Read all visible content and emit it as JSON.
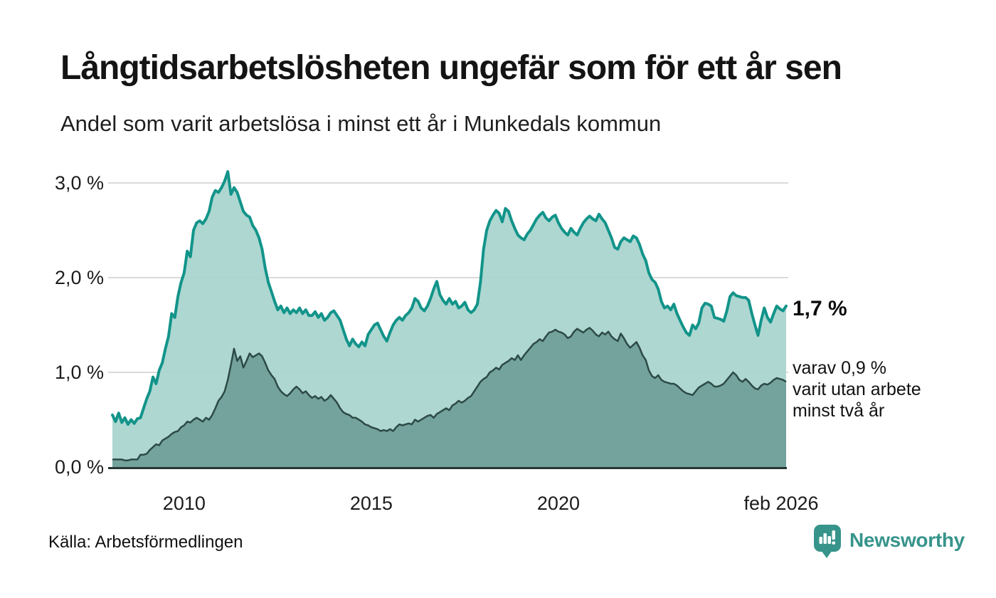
{
  "header": {
    "title": "Långtidsarbetslösheten ungefär som för ett år sen",
    "subtitle": "Andel som varit arbetslösa i minst ett år i Munkedals kommun"
  },
  "annotations": {
    "latest_total": "1,7 %",
    "secondary_line1": "varav 0,9 %",
    "secondary_line2": "varit utan arbete",
    "secondary_line3": "minst två år"
  },
  "footer": {
    "source": "Källa: Arbetsförmedlingen",
    "brand": "Newsworthy"
  },
  "colors": {
    "total_line": "#12948a",
    "total_fill": "#a8d4cd",
    "two_year_line": "#2d4a47",
    "two_year_fill": "#73a39c",
    "grid": "#dadada",
    "axis": "#273736",
    "brand_teal": "#37948b",
    "text": "#141414"
  },
  "chart_data": {
    "type": "area",
    "title": "Långtidsarbetslösheten ungefär som för ett år sen",
    "subtitle": "Andel som varit arbetslösa i minst ett år i Munkedals kommun",
    "unit": "%",
    "frequency": "monthly",
    "start": "2008-02",
    "end": "2026-02",
    "ylim": [
      0,
      3.3
    ],
    "grid": true,
    "legend_position": "right-annotations",
    "y_ticks": [
      {
        "label": "0,0 %",
        "value": 0
      },
      {
        "label": "1,0 %",
        "value": 1
      },
      {
        "label": "2,0 %",
        "value": 2
      },
      {
        "label": "3,0 %",
        "value": 3
      }
    ],
    "x_ticks": [
      {
        "label": "2010",
        "month_index": 23
      },
      {
        "label": "2015",
        "month_index": 83
      },
      {
        "label": "2020",
        "month_index": 143
      },
      {
        "label": "feb 2026",
        "month_index": 216
      }
    ],
    "series": [
      {
        "name": "Andel arbetslösa minst ett år",
        "latest": 1.7,
        "line_color": "#12948a",
        "fill_color": "#a8d4cd",
        "values": [
          0.55,
          0.48,
          0.57,
          0.47,
          0.52,
          0.45,
          0.5,
          0.46,
          0.51,
          0.52,
          0.62,
          0.72,
          0.8,
          0.95,
          0.88,
          1.02,
          1.1,
          1.25,
          1.38,
          1.62,
          1.58,
          1.8,
          1.95,
          2.05,
          2.28,
          2.22,
          2.5,
          2.58,
          2.6,
          2.57,
          2.62,
          2.7,
          2.85,
          2.92,
          2.9,
          2.95,
          3.02,
          3.12,
          2.88,
          2.95,
          2.9,
          2.8,
          2.7,
          2.66,
          2.64,
          2.55,
          2.5,
          2.42,
          2.3,
          2.1,
          1.95,
          1.85,
          1.75,
          1.66,
          1.7,
          1.63,
          1.68,
          1.62,
          1.66,
          1.63,
          1.68,
          1.62,
          1.66,
          1.6,
          1.6,
          1.64,
          1.58,
          1.62,
          1.55,
          1.58,
          1.63,
          1.65,
          1.6,
          1.55,
          1.45,
          1.35,
          1.28,
          1.35,
          1.3,
          1.27,
          1.32,
          1.28,
          1.4,
          1.45,
          1.5,
          1.52,
          1.45,
          1.38,
          1.33,
          1.42,
          1.5,
          1.55,
          1.58,
          1.55,
          1.6,
          1.63,
          1.68,
          1.78,
          1.75,
          1.68,
          1.65,
          1.7,
          1.78,
          1.88,
          1.96,
          1.82,
          1.76,
          1.72,
          1.78,
          1.72,
          1.75,
          1.68,
          1.7,
          1.74,
          1.66,
          1.63,
          1.66,
          1.72,
          1.95,
          2.3,
          2.5,
          2.6,
          2.66,
          2.71,
          2.68,
          2.59,
          2.73,
          2.7,
          2.6,
          2.52,
          2.45,
          2.42,
          2.4,
          2.46,
          2.5,
          2.56,
          2.62,
          2.66,
          2.69,
          2.63,
          2.6,
          2.64,
          2.66,
          2.58,
          2.52,
          2.48,
          2.45,
          2.52,
          2.48,
          2.45,
          2.52,
          2.58,
          2.62,
          2.65,
          2.62,
          2.6,
          2.67,
          2.62,
          2.58,
          2.5,
          2.42,
          2.32,
          2.3,
          2.38,
          2.42,
          2.4,
          2.38,
          2.44,
          2.42,
          2.35,
          2.25,
          2.18,
          2.05,
          1.98,
          1.95,
          1.88,
          1.75,
          1.68,
          1.7,
          1.66,
          1.72,
          1.62,
          1.55,
          1.48,
          1.42,
          1.39,
          1.5,
          1.46,
          1.52,
          1.68,
          1.73,
          1.72,
          1.7,
          1.58,
          1.57,
          1.56,
          1.54,
          1.65,
          1.8,
          1.84,
          1.81,
          1.8,
          1.79,
          1.79,
          1.76,
          1.62,
          1.5,
          1.39,
          1.55,
          1.68,
          1.58,
          1.53,
          1.62,
          1.7,
          1.67,
          1.65,
          1.7
        ]
      },
      {
        "name": "Andel arbetslösa minst två år",
        "latest": 0.9,
        "line_color": "#2d4a47",
        "fill_color": "#73a39c",
        "values": [
          0.08,
          0.08,
          0.08,
          0.08,
          0.07,
          0.07,
          0.08,
          0.08,
          0.08,
          0.13,
          0.13,
          0.14,
          0.18,
          0.21,
          0.24,
          0.23,
          0.28,
          0.3,
          0.32,
          0.35,
          0.37,
          0.38,
          0.42,
          0.44,
          0.48,
          0.47,
          0.5,
          0.52,
          0.5,
          0.48,
          0.52,
          0.5,
          0.55,
          0.62,
          0.7,
          0.74,
          0.8,
          0.92,
          1.08,
          1.25,
          1.12,
          1.17,
          1.05,
          1.12,
          1.2,
          1.16,
          1.18,
          1.2,
          1.17,
          1.1,
          1.02,
          0.97,
          0.93,
          0.85,
          0.8,
          0.77,
          0.75,
          0.78,
          0.82,
          0.85,
          0.82,
          0.78,
          0.8,
          0.76,
          0.73,
          0.75,
          0.72,
          0.74,
          0.7,
          0.72,
          0.76,
          0.72,
          0.68,
          0.62,
          0.58,
          0.56,
          0.55,
          0.52,
          0.52,
          0.5,
          0.48,
          0.45,
          0.44,
          0.42,
          0.41,
          0.4,
          0.38,
          0.39,
          0.38,
          0.4,
          0.38,
          0.42,
          0.45,
          0.44,
          0.45,
          0.46,
          0.45,
          0.5,
          0.48,
          0.5,
          0.52,
          0.54,
          0.55,
          0.52,
          0.56,
          0.58,
          0.6,
          0.62,
          0.6,
          0.65,
          0.67,
          0.7,
          0.68,
          0.7,
          0.73,
          0.75,
          0.8,
          0.85,
          0.9,
          0.93,
          0.95,
          1.0,
          1.02,
          1.05,
          1.03,
          1.08,
          1.1,
          1.12,
          1.15,
          1.13,
          1.18,
          1.13,
          1.18,
          1.22,
          1.26,
          1.3,
          1.32,
          1.35,
          1.33,
          1.38,
          1.42,
          1.43,
          1.45,
          1.43,
          1.42,
          1.4,
          1.36,
          1.38,
          1.43,
          1.46,
          1.44,
          1.42,
          1.45,
          1.47,
          1.44,
          1.4,
          1.38,
          1.42,
          1.4,
          1.43,
          1.38,
          1.35,
          1.33,
          1.41,
          1.36,
          1.3,
          1.26,
          1.29,
          1.32,
          1.26,
          1.18,
          1.13,
          1.02,
          0.96,
          0.94,
          0.97,
          0.92,
          0.9,
          0.89,
          0.88,
          0.88,
          0.86,
          0.83,
          0.8,
          0.78,
          0.77,
          0.76,
          0.8,
          0.84,
          0.86,
          0.88,
          0.9,
          0.88,
          0.85,
          0.85,
          0.86,
          0.88,
          0.92,
          0.96,
          1.0,
          0.97,
          0.92,
          0.9,
          0.93,
          0.9,
          0.86,
          0.83,
          0.82,
          0.86,
          0.88,
          0.87,
          0.89,
          0.92,
          0.94,
          0.93,
          0.92,
          0.9
        ]
      }
    ]
  }
}
